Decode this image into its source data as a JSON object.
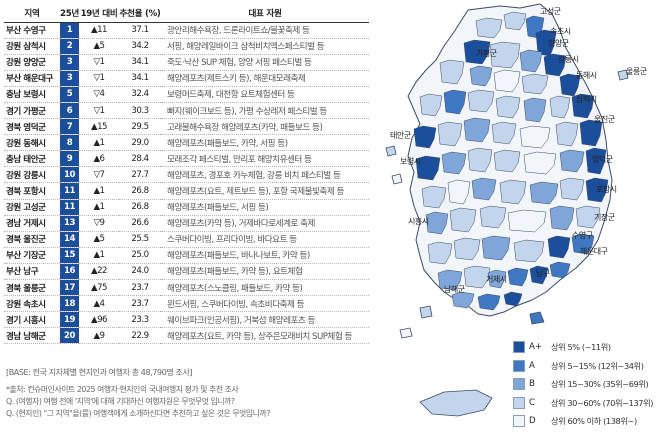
{
  "chart_data": {
    "type": "table",
    "columns": [
      "지역",
      "25년",
      "19년 대비",
      "추천율 (%)",
      "대표 자원"
    ],
    "rows": [
      {
        "region": "부산 수영구",
        "rank": "1",
        "change": "▲11",
        "rate": "37.1",
        "resource": "광안리해수욕장, 드론라이트쇼/불꽃축제 등"
      },
      {
        "region": "강원 삼척시",
        "rank": "2",
        "change": "▲5",
        "rate": "34.2",
        "resource": "서핑, 해양레일바이크 삼척비치엑스페스티벌 등"
      },
      {
        "region": "강원 양양군",
        "rank": "3",
        "change": "▽1",
        "rate": "34.1",
        "resource": "죽도·낙산 SUP 체험, 양양 서핑 페스티벌 등"
      },
      {
        "region": "부산 해운대구",
        "rank": "3",
        "change": "▽1",
        "rate": "34.1",
        "resource": "해양레포츠(제트스키 등), 해운대모래축제"
      },
      {
        "region": "충남 보령시",
        "rank": "5",
        "change": "▽4",
        "rate": "32.4",
        "resource": "보령머드축제, 대천항 요트체험센터 등"
      },
      {
        "region": "경기 가평군",
        "rank": "6",
        "change": "▽1",
        "rate": "30.3",
        "resource": "빠지(웨이크보드 등), 가평 수상레저 페스티벌 등"
      },
      {
        "region": "경북 영덕군",
        "rank": "7",
        "change": "▲15",
        "rate": "29.5",
        "resource": "고래불해수욕장 해양레포츠(카약, 패들보드 등)"
      },
      {
        "region": "강원 동해시",
        "rank": "8",
        "change": "▲1",
        "rate": "29.0",
        "resource": "해양레포츠(패들보드, 카약, 서핑 등)"
      },
      {
        "region": "충남 태안군",
        "rank": "9",
        "change": "▲6",
        "rate": "28.4",
        "resource": "모래조각 페스티벌, 만리포 해양치유센터 등"
      },
      {
        "region": "강원 강릉시",
        "rank": "10",
        "change": "▽7",
        "rate": "27.7",
        "resource": "해양레포츠, 경포호 카누체험, 강릉 비치 페스티벌 등"
      },
      {
        "region": "경북 포항시",
        "rank": "11",
        "change": "▲1",
        "rate": "26.8",
        "resource": "해양레포츠(요트, 제트보드 등), 포항 국제불빛축제 등"
      },
      {
        "region": "강원 고성군",
        "rank": "11",
        "change": "▲1",
        "rate": "26.8",
        "resource": "해양레포츠(패들보드, 서핑 등)"
      },
      {
        "region": "경남 거제시",
        "rank": "13",
        "change": "▽9",
        "rate": "26.6",
        "resource": "해양레포츠(카약 등), 거제바다로세계로 축제"
      },
      {
        "region": "경북 울진군",
        "rank": "14",
        "change": "▲5",
        "rate": "25.5",
        "resource": "스쿠버다이빙, 프리다이빙, 바다요트 등"
      },
      {
        "region": "부산 기장군",
        "rank": "15",
        "change": "▲1",
        "rate": "25.0",
        "resource": "해양레포츠(패들보드, 바나나보트, 카약 등)"
      },
      {
        "region": "부산 남구",
        "rank": "16",
        "change": "▲22",
        "rate": "24.0",
        "resource": "해양레포츠(패들보드, 카약 등), 요트체험"
      },
      {
        "region": "경북 울릉군",
        "rank": "17",
        "change": "▲75",
        "rate": "23.7",
        "resource": "해양레포츠(스노클링, 패들보드, 카약 등)"
      },
      {
        "region": "강원 속초시",
        "rank": "18",
        "change": "▲4",
        "rate": "23.7",
        "resource": "윈드서핑, 스쿠버다이빙, 속초비다축제 등"
      },
      {
        "region": "경기 시흥시",
        "rank": "19",
        "change": "▲96",
        "rate": "23.3",
        "resource": "웨이브파크(인공서핑), 거북섬 해양레포츠 등"
      },
      {
        "region": "경남 남해군",
        "rank": "20",
        "change": "▲9",
        "rate": "22.9",
        "resource": "해양레포츠(요트, 카약 등), 상주은모래비치 SUP체험 등"
      }
    ],
    "legend": [
      {
        "grade": "A+",
        "range": "상위 5% (~11위)",
        "color": "#1b4f9c"
      },
      {
        "grade": "A",
        "range": "상위 5~15% (12위~34위)",
        "color": "#3e78c2"
      },
      {
        "grade": "B",
        "range": "상위 15~30% (35위~69위)",
        "color": "#7ea6d8"
      },
      {
        "grade": "C",
        "range": "상위 30~60% (70위~137위)",
        "color": "#c3d5ec"
      },
      {
        "grade": "D",
        "range": "상위 60% 이하 (138위~)",
        "color": "#f2f5fa"
      }
    ],
    "map_labels": [
      "고성군",
      "속초시",
      "양양군",
      "강릉시",
      "가평군",
      "동해시",
      "삼척시",
      "울릉군",
      "울진군",
      "영덕군",
      "태안군",
      "보령시",
      "포항시",
      "시흥시",
      "기장군",
      "수영구",
      "해운대구",
      "남구",
      "거제시",
      "남해군"
    ]
  },
  "base_note": "[BASE: 전국 지자체별 현지인과 여행자 총 48,790명 조사]",
  "footnotes": [
    "*출처: 컨슈머인사이트 2025 여행자·현지인의 국내여행지 평가 및 추천 조사",
    "Q. (여행자) 여행 전에 '지역'에 대해 기대하신 여행자원은 무엇무엇 입니까?",
    "Q. (현지인) \"그 지역\"을(를) 여행객에게 소개하신다면 추천하고 싶은 것은 무엇입니까?"
  ],
  "colors": {
    "rank_cell": "#1b4f9c",
    "sea": "#ffffff",
    "border": "#3b4a66"
  }
}
